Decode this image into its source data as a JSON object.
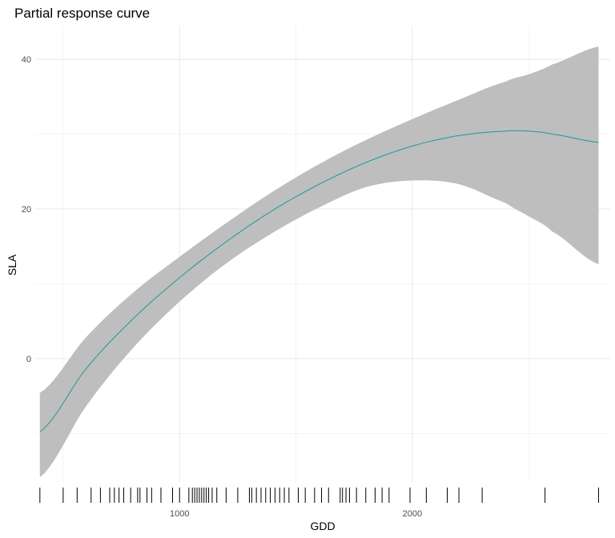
{
  "chart_data": {
    "type": "line",
    "title": "Partial response curve",
    "xlabel": "GDD",
    "ylabel": "SLA",
    "xlim": [
      380,
      2850
    ],
    "ylim": [
      -16.5,
      44.5
    ],
    "x_ticks": [
      1000,
      2000
    ],
    "x_tick_labels": [
      "1000",
      "2000"
    ],
    "y_ticks": [
      0,
      20,
      40
    ],
    "y_tick_labels": [
      "0",
      "20",
      "40"
    ],
    "x_minor_ticks": [
      500,
      1500,
      2500
    ],
    "y_minor_ticks": [
      -10,
      10,
      30
    ],
    "grid": true,
    "legend": "none",
    "colors": {
      "line": "#1a9a9a",
      "band": "#bebebe",
      "grid": "#ebebeb",
      "rug": "#000000"
    },
    "series": [
      {
        "x": [
          400,
          600,
          800,
          1000,
          1200,
          1400,
          1600,
          1800,
          2000,
          2200,
          2400,
          2500,
          2600,
          2800
        ],
        "y": [
          -9.8,
          -1.3,
          5.3,
          10.8,
          15.6,
          19.8,
          23.3,
          26.2,
          28.4,
          29.8,
          30.4,
          30.4,
          30.0,
          28.9
        ],
        "lower": [
          -15.9,
          -6.3,
          1.4,
          7.6,
          12.7,
          16.8,
          20.2,
          22.9,
          23.8,
          23.3,
          20.8,
          19.0,
          17.0,
          12.6
        ],
        "upper": [
          -4.6,
          2.9,
          8.8,
          13.6,
          18.1,
          22.3,
          26.0,
          29.2,
          32.0,
          34.6,
          37.0,
          38.0,
          39.3,
          41.7
        ]
      }
    ],
    "rug": [
      400,
      500,
      560,
      620,
      660,
      700,
      720,
      740,
      760,
      790,
      820,
      830,
      860,
      880,
      920,
      970,
      1000,
      1040,
      1055,
      1065,
      1075,
      1085,
      1095,
      1105,
      1115,
      1125,
      1140,
      1160,
      1200,
      1250,
      1300,
      1310,
      1330,
      1350,
      1370,
      1390,
      1410,
      1430,
      1450,
      1470,
      1510,
      1540,
      1580,
      1610,
      1640,
      1690,
      1700,
      1715,
      1730,
      1760,
      1800,
      1840,
      1870,
      1900,
      1990,
      2060,
      2150,
      2200,
      2300,
      2570,
      2800
    ]
  }
}
